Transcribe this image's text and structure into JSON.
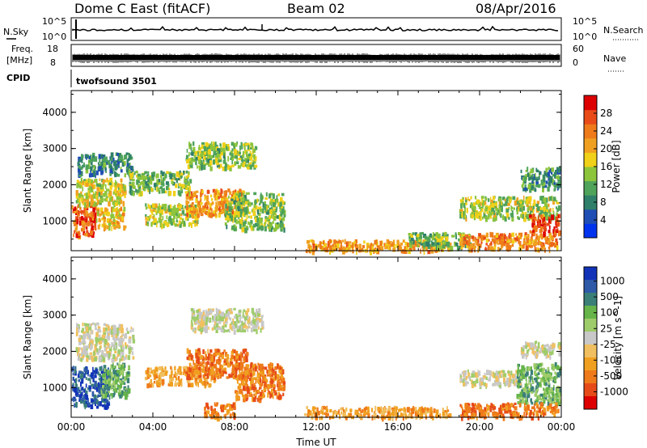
{
  "header": {
    "title": "Dome C East (fitACF)",
    "beam": "Beam 02",
    "date": "08/Apr/2016"
  },
  "top_panels": {
    "nsky_label": "N.Sky",
    "nsky_ticks": [
      "10^5",
      "10^0"
    ],
    "nsearch_label": "N.Search",
    "nsearch_ticks": [
      "10^5",
      "10^0"
    ],
    "freq_label": "Freq.",
    "freq_unit": "[MHz]",
    "freq_ticks": [
      "18",
      "8"
    ],
    "nave_label": "Nave",
    "nave_ticks": [
      "60",
      "0"
    ],
    "cpid_label": "CPID",
    "cpid_value": "twofsound 3501"
  },
  "colors": {
    "power_scale": [
      "#0033ee",
      "#1f4eb4",
      "#2f7f6a",
      "#4fa35a",
      "#8cc43c",
      "#f0d018",
      "#f0a020",
      "#ee7a1a",
      "#e84a18",
      "#dd0000"
    ],
    "velocity_scale": [
      "#1232b8",
      "#2e5aa8",
      "#3a7f78",
      "#66b44a",
      "#9fcc6a",
      "#c8c8c8",
      "#f0c060",
      "#f0a020",
      "#ef7a1a",
      "#e64a18",
      "#dd0000"
    ]
  },
  "chart_data": [
    {
      "type": "heatmap",
      "panel": "power",
      "xlabel": "",
      "ylabel": "Slant Range [km]",
      "x_ticks": [
        "00:00",
        "04:00",
        "08:00",
        "12:00",
        "16:00",
        "20:00",
        "00:00"
      ],
      "x_range_hours": [
        0,
        24
      ],
      "ylim": [
        180,
        4600
      ],
      "y_ticks": [
        "1000",
        "2000",
        "3000",
        "4000"
      ],
      "y_tick_values": [
        1000,
        2000,
        3000,
        4000
      ],
      "colorbar": {
        "label": "Power [dB]",
        "range": [
          0,
          32
        ],
        "tick_values": [
          4,
          8,
          12,
          16,
          20,
          24,
          28
        ],
        "ticks": [
          "4",
          "8",
          "12",
          "16",
          "20",
          "24",
          "28"
        ]
      },
      "regions": [
        {
          "t0": 0.0,
          "t1": 1.2,
          "r0": 600,
          "r1": 1500,
          "level": 26
        },
        {
          "t0": 1.2,
          "t1": 2.6,
          "r0": 800,
          "r1": 1400,
          "level": 19
        },
        {
          "t0": 0.2,
          "t1": 2.6,
          "r0": 1500,
          "r1": 2200,
          "level": 17
        },
        {
          "t0": 0.3,
          "t1": 3.0,
          "r0": 2300,
          "r1": 2900,
          "level": 9
        },
        {
          "t0": 3.6,
          "t1": 6.2,
          "r0": 900,
          "r1": 1500,
          "level": 15
        },
        {
          "t0": 5.6,
          "t1": 8.4,
          "r0": 1200,
          "r1": 1900,
          "level": 22
        },
        {
          "t0": 5.6,
          "t1": 9.0,
          "r0": 2500,
          "r1": 3200,
          "level": 14
        },
        {
          "t0": 7.5,
          "t1": 10.4,
          "r0": 800,
          "r1": 1800,
          "level": 14
        },
        {
          "t0": 2.8,
          "t1": 5.8,
          "r0": 1800,
          "r1": 2400,
          "level": 13
        },
        {
          "t0": 11.4,
          "t1": 18.5,
          "r0": 200,
          "r1": 500,
          "level": 21
        },
        {
          "t0": 16.5,
          "t1": 19.5,
          "r0": 300,
          "r1": 700,
          "level": 12
        },
        {
          "t0": 19.0,
          "t1": 23.8,
          "r0": 250,
          "r1": 700,
          "level": 23
        },
        {
          "t0": 19.0,
          "t1": 23.9,
          "r0": 1100,
          "r1": 1700,
          "level": 15
        },
        {
          "t0": 22.4,
          "t1": 23.9,
          "r0": 700,
          "r1": 1200,
          "level": 27
        },
        {
          "t0": 22.0,
          "t1": 23.9,
          "r0": 1900,
          "r1": 2500,
          "level": 10
        }
      ]
    },
    {
      "type": "heatmap",
      "panel": "velocity",
      "xlabel": "Time UT",
      "ylabel": "Slant Range [km]",
      "x_ticks": [
        "00:00",
        "04:00",
        "08:00",
        "12:00",
        "16:00",
        "20:00",
        "00:00"
      ],
      "x_range_hours": [
        0,
        24
      ],
      "ylim": [
        180,
        4600
      ],
      "y_ticks": [
        "1000",
        "2000",
        "3000",
        "4000"
      ],
      "y_tick_values": [
        1000,
        2000,
        3000,
        4000
      ],
      "colorbar": {
        "label": "Velocity [m s^-1]",
        "ticks": [
          "1000",
          "500",
          "100",
          "25",
          "-25",
          "-100",
          "-500",
          "-1000"
        ]
      },
      "regions": [
        {
          "t0": 0.0,
          "t1": 1.8,
          "r0": 500,
          "r1": 1600,
          "level": 1
        },
        {
          "t0": 1.4,
          "t1": 2.8,
          "r0": 800,
          "r1": 1700,
          "level": 3
        },
        {
          "t0": 0.2,
          "t1": 3.0,
          "r0": 1800,
          "r1": 2800,
          "level": 5
        },
        {
          "t0": 3.6,
          "t1": 7.0,
          "r0": 1100,
          "r1": 1600,
          "level": 7
        },
        {
          "t0": 5.6,
          "t1": 8.6,
          "r0": 1300,
          "r1": 2100,
          "level": 8
        },
        {
          "t0": 5.8,
          "t1": 9.4,
          "r0": 2600,
          "r1": 3200,
          "level": 5
        },
        {
          "t0": 8.0,
          "t1": 10.4,
          "r0": 700,
          "r1": 1700,
          "level": 8
        },
        {
          "t0": 6.5,
          "t1": 8.0,
          "r0": 200,
          "r1": 600,
          "level": 8
        },
        {
          "t0": 11.4,
          "t1": 18.5,
          "r0": 200,
          "r1": 500,
          "level": 7
        },
        {
          "t0": 19.0,
          "t1": 22.0,
          "r0": 1100,
          "r1": 1500,
          "level": 5
        },
        {
          "t0": 21.8,
          "t1": 23.9,
          "r0": 600,
          "r1": 1700,
          "level": 3
        },
        {
          "t0": 19.0,
          "t1": 23.8,
          "r0": 200,
          "r1": 600,
          "level": 8
        },
        {
          "t0": 22.0,
          "t1": 23.9,
          "r0": 1900,
          "r1": 2300,
          "level": 5
        }
      ]
    }
  ]
}
